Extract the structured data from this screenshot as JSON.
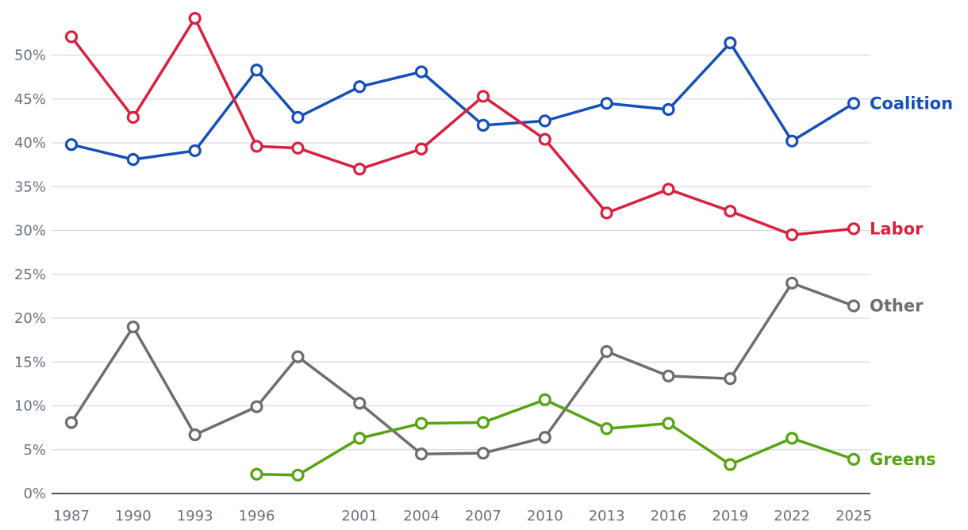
{
  "chart_data": {
    "type": "line",
    "x": [
      1987,
      1990,
      1993,
      1996,
      1998,
      2001,
      2004,
      2007,
      2010,
      2013,
      2016,
      2019,
      2022,
      2025
    ],
    "x_tick_labels": [
      "1987",
      "1990",
      "1993",
      "1996",
      "2001",
      "2004",
      "2007",
      "2010",
      "2013",
      "2016",
      "2019",
      "2022",
      "2025"
    ],
    "y_tick_labels": [
      "0%",
      "5%",
      "10%",
      "15%",
      "20%",
      "25%",
      "30%",
      "35%",
      "40%",
      "45%",
      "50%"
    ],
    "ylim": [
      0,
      54
    ],
    "xlim": [
      1987,
      2025
    ],
    "grid": true,
    "series": [
      {
        "name": "Coalition",
        "color": "#1550b8",
        "values": [
          39.8,
          38.1,
          39.1,
          48.3,
          42.9,
          46.4,
          48.1,
          42.0,
          42.5,
          44.5,
          43.8,
          51.4,
          40.2,
          44.5
        ]
      },
      {
        "name": "Labor",
        "color": "#d9213f",
        "values": [
          52.1,
          42.9,
          54.2,
          39.6,
          39.4,
          37.0,
          39.3,
          45.3,
          40.4,
          32.0,
          34.7,
          32.2,
          29.5,
          30.2
        ]
      },
      {
        "name": "Other",
        "color": "#6e6e6e",
        "values": [
          8.1,
          19.0,
          6.7,
          9.9,
          15.6,
          10.3,
          4.5,
          4.6,
          6.4,
          16.2,
          13.4,
          13.1,
          24.0,
          21.4
        ]
      },
      {
        "name": "Greens",
        "color": "#56a412",
        "values": [
          null,
          null,
          null,
          2.2,
          2.1,
          6.3,
          8.0,
          8.1,
          10.7,
          7.4,
          8.0,
          3.3,
          6.3,
          3.9
        ]
      }
    ]
  }
}
